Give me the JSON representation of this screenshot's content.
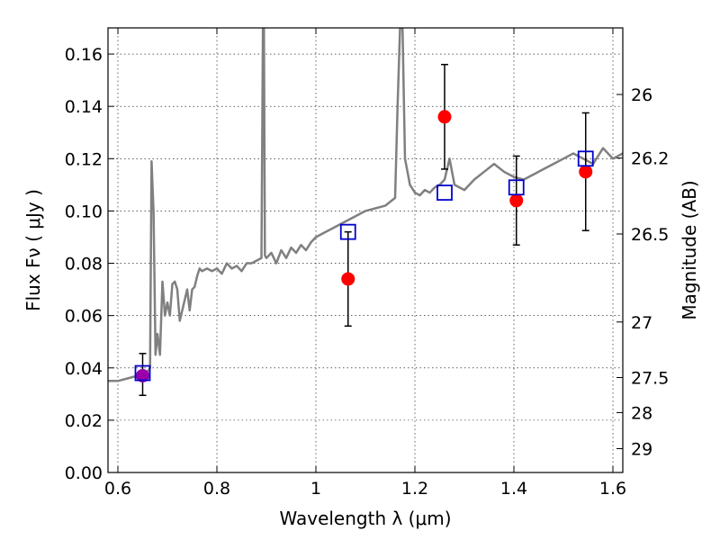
{
  "chart_data": {
    "type": "scatter",
    "xlabel": "Wavelength  λ (μm)",
    "ylabel": "Flux  Fν  ( μJy )",
    "y2label": "Magnitude (AB)",
    "xlim": [
      0.58,
      1.62
    ],
    "ylim": [
      0.0,
      0.17
    ],
    "x_ticks": [
      0.6,
      0.8,
      1.0,
      1.2,
      1.4,
      1.6
    ],
    "x_tick_labels": [
      "0.6",
      "0.8",
      "1",
      "1.2",
      "1.4",
      "1.6"
    ],
    "y_ticks": [
      0.0,
      0.02,
      0.04,
      0.06,
      0.08,
      0.1,
      0.12,
      0.14,
      0.16
    ],
    "y_tick_labels": [
      "0.00",
      "0.02",
      "0.04",
      "0.06",
      "0.08",
      "0.10",
      "0.12",
      "0.14",
      "0.16"
    ],
    "y2_ticks": [
      26,
      26.2,
      26.5,
      27,
      27.5,
      28,
      29
    ],
    "y2_tick_labels": [
      "26",
      "26.2",
      "26.5",
      "27",
      "27.5",
      "28",
      "29"
    ],
    "grid": true,
    "colors": {
      "model": "#808080",
      "observed": "#ff0000",
      "model_photometry": "#0000cc",
      "first_point": "#9900aa",
      "errorbar": "#000000"
    },
    "series": [
      {
        "type": "line",
        "x": [
          0.58,
          0.6,
          0.62,
          0.64,
          0.655,
          0.662,
          0.665,
          0.668,
          0.672,
          0.676,
          0.68,
          0.685,
          0.69,
          0.695,
          0.7,
          0.705,
          0.71,
          0.715,
          0.72,
          0.725,
          0.73,
          0.74,
          0.745,
          0.75,
          0.755,
          0.76,
          0.765,
          0.77,
          0.78,
          0.79,
          0.8,
          0.81,
          0.82,
          0.83,
          0.84,
          0.85,
          0.86,
          0.87,
          0.88,
          0.89,
          0.893,
          0.895,
          0.897,
          0.9,
          0.91,
          0.92,
          0.93,
          0.94,
          0.95,
          0.96,
          0.97,
          0.98,
          0.99,
          1.0,
          1.02,
          1.04,
          1.06,
          1.08,
          1.1,
          1.12,
          1.14,
          1.16,
          1.165,
          1.17,
          1.175,
          1.18,
          1.185,
          1.19,
          1.2,
          1.21,
          1.22,
          1.23,
          1.24,
          1.25,
          1.26,
          1.27,
          1.28,
          1.29,
          1.3,
          1.32,
          1.34,
          1.36,
          1.38,
          1.4,
          1.42,
          1.44,
          1.46,
          1.48,
          1.5,
          1.52,
          1.54,
          1.56,
          1.58,
          1.6,
          1.62
        ],
        "y": [
          0.035,
          0.035,
          0.036,
          0.037,
          0.038,
          0.039,
          0.04,
          0.119,
          0.1,
          0.045,
          0.053,
          0.045,
          0.073,
          0.06,
          0.065,
          0.06,
          0.072,
          0.073,
          0.07,
          0.058,
          0.062,
          0.07,
          0.062,
          0.07,
          0.071,
          0.075,
          0.078,
          0.077,
          0.078,
          0.077,
          0.078,
          0.076,
          0.08,
          0.078,
          0.079,
          0.077,
          0.08,
          0.08,
          0.081,
          0.082,
          0.17,
          0.17,
          0.083,
          0.082,
          0.084,
          0.08,
          0.085,
          0.082,
          0.086,
          0.084,
          0.087,
          0.085,
          0.088,
          0.09,
          0.092,
          0.094,
          0.096,
          0.098,
          0.1,
          0.101,
          0.102,
          0.105,
          0.14,
          0.17,
          0.17,
          0.12,
          0.115,
          0.11,
          0.107,
          0.106,
          0.108,
          0.107,
          0.109,
          0.11,
          0.112,
          0.12,
          0.11,
          0.109,
          0.108,
          0.112,
          0.115,
          0.118,
          0.115,
          0.113,
          0.112,
          0.114,
          0.116,
          0.118,
          0.12,
          0.122,
          0.12,
          0.118,
          0.124,
          0.12,
          0.122
        ]
      },
      {
        "type": "model_photometry",
        "marker": "square",
        "x": [
          0.65,
          1.065,
          1.26,
          1.405,
          1.545
        ],
        "y": [
          0.038,
          0.092,
          0.107,
          0.109,
          0.12
        ]
      },
      {
        "type": "observed",
        "marker": "circle",
        "x": [
          0.65,
          1.065,
          1.26,
          1.405,
          1.545
        ],
        "y": [
          0.037,
          0.074,
          0.136,
          0.104,
          0.115
        ],
        "yerr_low": [
          0.0075,
          0.018,
          0.02,
          0.017,
          0.0225
        ],
        "yerr_high": [
          0.0085,
          0.018,
          0.02,
          0.017,
          0.0225
        ]
      }
    ]
  }
}
